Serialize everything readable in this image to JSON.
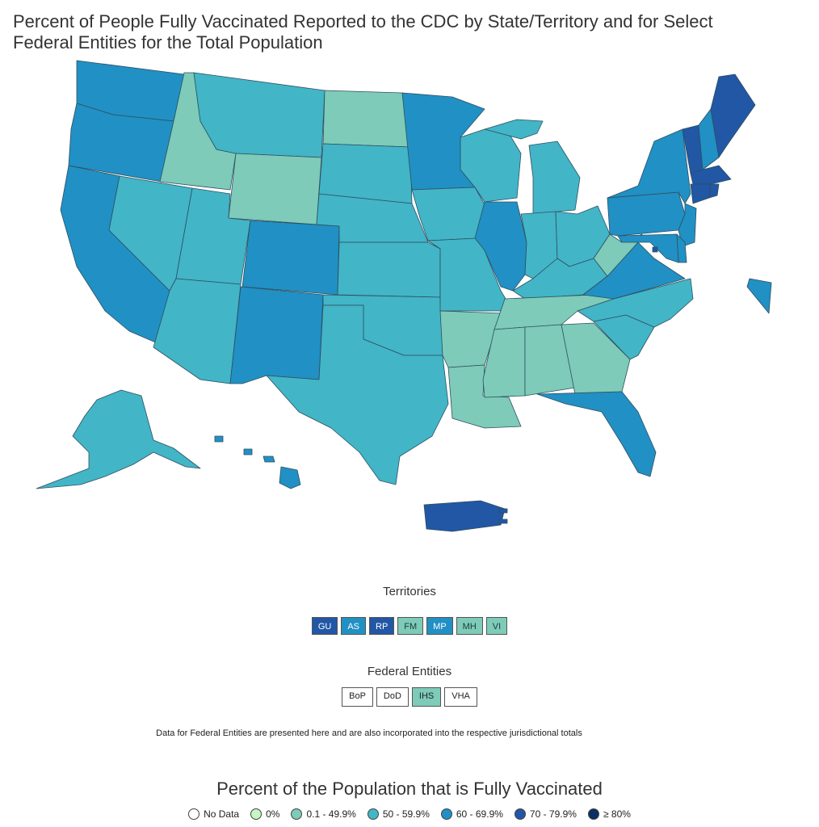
{
  "title_lines": [
    "Percent of People Fully Vaccinated Reported to the CDC by State/Territory and for Select",
    "Federal Entities for the Total Population"
  ],
  "colors": {
    "no_data": "#ffffff",
    "zero": "#c7f5c4",
    "c1": "#7dcbb8",
    "c2": "#42b5c7",
    "c3": "#2190c4",
    "c4": "#2157a5",
    "c5": "#0b2e63"
  },
  "states": {
    "WA": "c3",
    "OR": "c3",
    "CA": "c3",
    "ID": "c1",
    "NV": "c2",
    "UT": "c2",
    "AZ": "c2",
    "MT": "c2",
    "WY": "c1",
    "CO": "c3",
    "NM": "c3",
    "ND": "c1",
    "SD": "c2",
    "NE": "c2",
    "KS": "c2",
    "OK": "c2",
    "TX": "c2",
    "MN": "c3",
    "IA": "c2",
    "MO": "c2",
    "AR": "c1",
    "LA": "c1",
    "WI": "c2",
    "IL": "c3",
    "MI": "c2",
    "IN": "c2",
    "OH": "c2",
    "KY": "c2",
    "TN": "c1",
    "MS": "c1",
    "AL": "c1",
    "GA": "c1",
    "FL": "c3",
    "SC": "c2",
    "NC": "c2",
    "VA": "c3",
    "WV": "c1",
    "PA": "c3",
    "NY": "c3",
    "VT": "c4",
    "NH": "c3",
    "ME": "c4",
    "MA": "c4",
    "CT": "c4",
    "RI": "c4",
    "NJ": "c3",
    "DE": "c3",
    "MD": "c3",
    "DC": "c4",
    "AK": "c2",
    "HI": "c3",
    "PR": "c4"
  },
  "territories": {
    "heading": "Territories",
    "items": [
      {
        "label": "GU",
        "cls": "c4"
      },
      {
        "label": "AS",
        "cls": "c3"
      },
      {
        "label": "RP",
        "cls": "c4"
      },
      {
        "label": "FM",
        "cls": "c1"
      },
      {
        "label": "MP",
        "cls": "c3"
      },
      {
        "label": "MH",
        "cls": "c1"
      },
      {
        "label": "VI",
        "cls": "c1"
      }
    ]
  },
  "federal": {
    "heading": "Federal Entities",
    "items": [
      {
        "label": "BoP",
        "cls": "no_data"
      },
      {
        "label": "DoD",
        "cls": "no_data"
      },
      {
        "label": "IHS",
        "cls": "c1"
      },
      {
        "label": "VHA",
        "cls": "no_data"
      }
    ]
  },
  "note": "Data for Federal Entities are presented here and are also incorporated into the respective jurisdictional totals",
  "legend": {
    "title": "Percent of the Population that is Fully Vaccinated",
    "items": [
      {
        "label": "No Data",
        "cls": "no_data"
      },
      {
        "label": "0%",
        "cls": "zero"
      },
      {
        "label": "0.1 - 49.9%",
        "cls": "c1"
      },
      {
        "label": "50 - 59.9%",
        "cls": "c2"
      },
      {
        "label": "60 - 69.9%",
        "cls": "c3"
      },
      {
        "label": "70 - 79.9%",
        "cls": "c4"
      },
      {
        "label": "≥ 80%",
        "cls": "c5"
      }
    ]
  }
}
